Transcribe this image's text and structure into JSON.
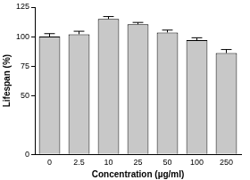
{
  "chart_data": {
    "type": "bar",
    "x_label": "Concentration (µg/ml)",
    "y_label": "Lifespan (%)",
    "categories": [
      "0",
      "2.5",
      "10",
      "25",
      "50",
      "100",
      "250"
    ],
    "values": [
      100,
      102,
      115,
      110.5,
      103.5,
      97,
      86
    ],
    "errors": [
      2.5,
      2.5,
      2,
      1.5,
      2,
      2,
      3
    ],
    "color": "#c8c8c8",
    "ylim": [
      0,
      125
    ],
    "yticks": [
      0,
      50,
      75,
      100,
      125
    ],
    "grid": false
  }
}
